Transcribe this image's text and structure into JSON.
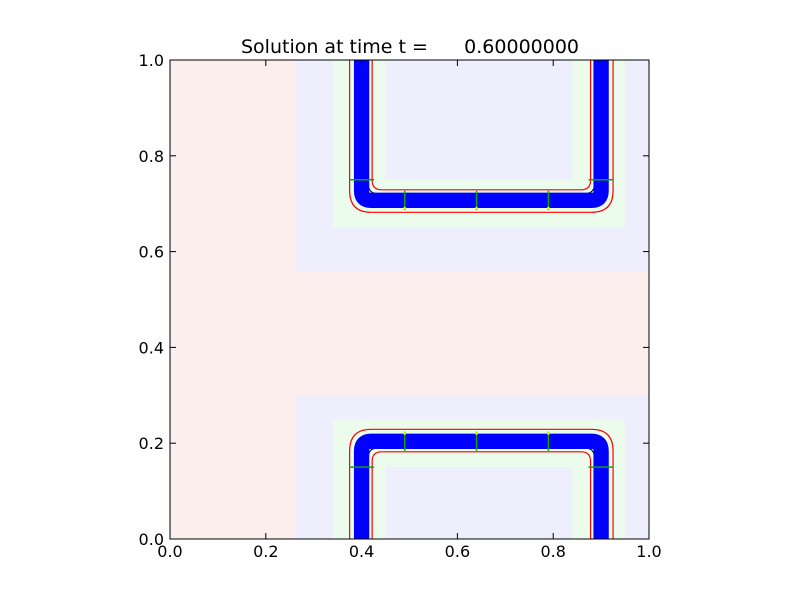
{
  "chart_data": {
    "type": "heatmap",
    "title": "Solution at time t =      0.60000000",
    "xlabel": "",
    "ylabel": "",
    "xlim": [
      0.0,
      1.0
    ],
    "ylim": [
      0.0,
      1.0
    ],
    "x_ticks": [
      0.0,
      0.2,
      0.4,
      0.6,
      0.8,
      1.0
    ],
    "y_ticks": [
      0.0,
      0.2,
      0.4,
      0.6,
      0.8,
      1.0
    ],
    "x_tick_labels": [
      "0.0",
      "0.2",
      "0.4",
      "0.6",
      "0.8",
      "1.0"
    ],
    "y_tick_labels": [
      "0.0",
      "0.2",
      "0.4",
      "0.6",
      "0.8",
      "1.0"
    ],
    "grid": false,
    "legend": "none",
    "background_color": "#fdeeee",
    "refinement_levels": [
      {
        "level": 2,
        "color": "#eeeefd",
        "patches": [
          {
            "x": [
              0.26,
              1.0
            ],
            "y": [
              0.557,
              1.0
            ]
          },
          {
            "x": [
              0.26,
              1.0
            ],
            "y": [
              0.0,
              0.3
            ]
          }
        ]
      },
      {
        "level": 3,
        "color": "#ecfcec",
        "patches": [
          {
            "x": [
              0.34,
              0.95
            ],
            "y": [
              0.65,
              1.0
            ]
          },
          {
            "x": [
              0.34,
              0.95
            ],
            "y": [
              0.0,
              0.25
            ]
          }
        ]
      },
      {
        "level": 4,
        "color": "#eeeefd",
        "patches": [
          {
            "x": [
              0.45,
              0.84
            ],
            "y": [
              0.75,
              1.0
            ]
          },
          {
            "x": [
              0.45,
              0.84
            ],
            "y": [
              0.0,
              0.15
            ]
          }
        ]
      }
    ],
    "solution_bands": [
      {
        "name": "upper",
        "path": [
          [
            0.4,
            1.0
          ],
          [
            0.4,
            0.707
          ],
          [
            0.9,
            0.707
          ],
          [
            0.9,
            1.0
          ]
        ],
        "half_width": 0.016
      },
      {
        "name": "lower",
        "path": [
          [
            0.4,
            0.0
          ],
          [
            0.4,
            0.204
          ],
          [
            0.9,
            0.204
          ],
          [
            0.9,
            0.0
          ]
        ],
        "half_width": 0.016
      }
    ],
    "contours": {
      "red_offsets": [
        0.025,
        -0.022
      ],
      "black_offsets": [
        0.014,
        -0.014
      ]
    },
    "colors": {
      "band": "#0000ff",
      "contour_outer": "#ff0000",
      "contour_inner": "#000000",
      "patch_edge": "#00aa00",
      "marker": "#ffff00"
    }
  }
}
